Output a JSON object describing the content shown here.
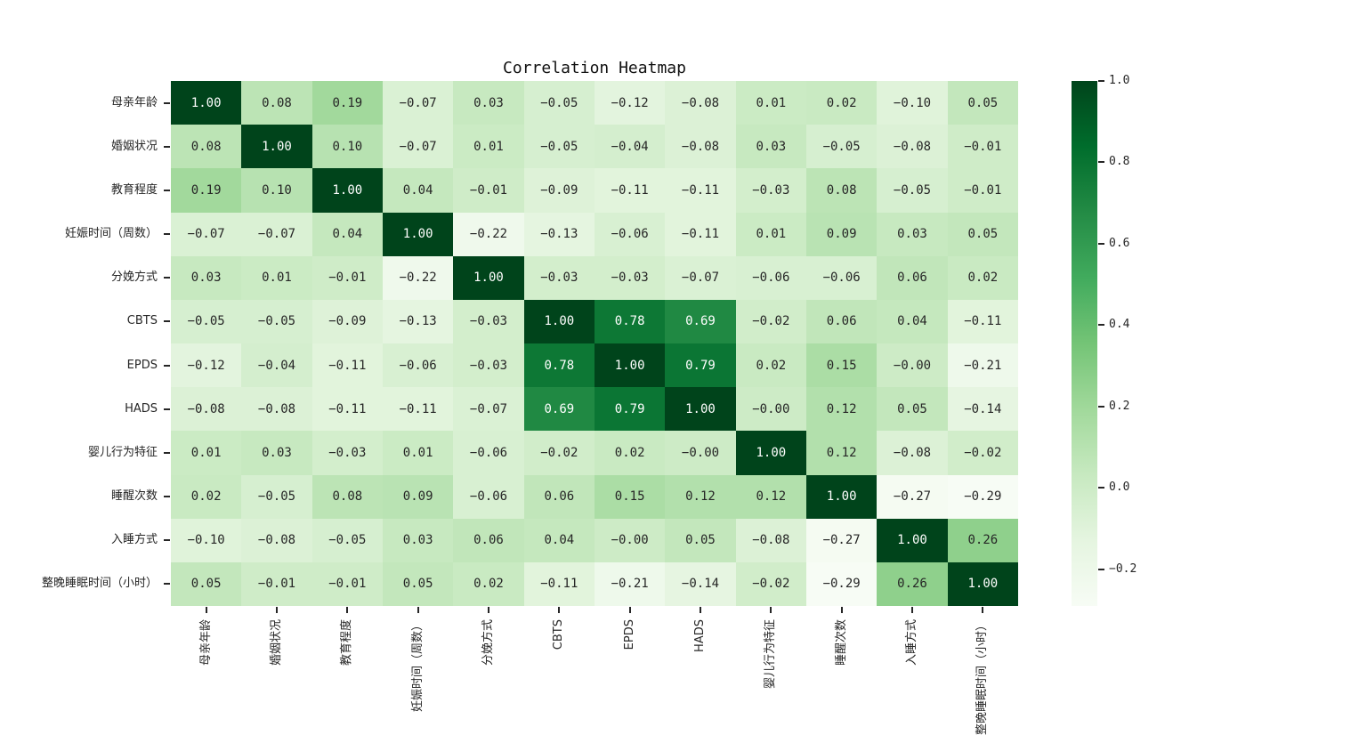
{
  "chart_data": {
    "type": "heatmap",
    "title": "Correlation Heatmap",
    "variables": [
      "母亲年龄",
      "婚姻状况",
      "教育程度",
      "妊娠时间（周数）",
      "分娩方式",
      "CBTS",
      "EPDS",
      "HADS",
      "婴儿行为特征",
      "睡醒次数",
      "入睡方式",
      "整晚睡眠时间（小时）"
    ],
    "matrix": [
      [
        "1.00",
        "0.08",
        "0.19",
        "-0.07",
        "0.03",
        "-0.05",
        "-0.12",
        "-0.08",
        "0.01",
        "0.02",
        "-0.10",
        "0.05"
      ],
      [
        "0.08",
        "1.00",
        "0.10",
        "-0.07",
        "0.01",
        "-0.05",
        "-0.04",
        "-0.08",
        "0.03",
        "-0.05",
        "-0.08",
        "-0.01"
      ],
      [
        "0.19",
        "0.10",
        "1.00",
        "0.04",
        "-0.01",
        "-0.09",
        "-0.11",
        "-0.11",
        "-0.03",
        "0.08",
        "-0.05",
        "-0.01"
      ],
      [
        "-0.07",
        "-0.07",
        "0.04",
        "1.00",
        "-0.22",
        "-0.13",
        "-0.06",
        "-0.11",
        "0.01",
        "0.09",
        "0.03",
        "0.05"
      ],
      [
        "0.03",
        "0.01",
        "-0.01",
        "-0.22",
        "1.00",
        "-0.03",
        "-0.03",
        "-0.07",
        "-0.06",
        "-0.06",
        "0.06",
        "0.02"
      ],
      [
        "-0.05",
        "-0.05",
        "-0.09",
        "-0.13",
        "-0.03",
        "1.00",
        "0.78",
        "0.69",
        "-0.02",
        "0.06",
        "0.04",
        "-0.11"
      ],
      [
        "-0.12",
        "-0.04",
        "-0.11",
        "-0.06",
        "-0.03",
        "0.78",
        "1.00",
        "0.79",
        "0.02",
        "0.15",
        "-0.00",
        "-0.21"
      ],
      [
        "-0.08",
        "-0.08",
        "-0.11",
        "-0.11",
        "-0.07",
        "0.69",
        "0.79",
        "1.00",
        "-0.00",
        "0.12",
        "0.05",
        "-0.14"
      ],
      [
        "0.01",
        "0.03",
        "-0.03",
        "0.01",
        "-0.06",
        "-0.02",
        "0.02",
        "-0.00",
        "1.00",
        "0.12",
        "-0.08",
        "-0.02"
      ],
      [
        "0.02",
        "-0.05",
        "0.08",
        "0.09",
        "-0.06",
        "0.06",
        "0.15",
        "0.12",
        "0.12",
        "1.00",
        "-0.27",
        "-0.29"
      ],
      [
        "-0.10",
        "-0.08",
        "-0.05",
        "0.03",
        "0.06",
        "0.04",
        "-0.00",
        "0.05",
        "-0.08",
        "-0.27",
        "1.00",
        "0.26"
      ],
      [
        "0.05",
        "-0.01",
        "-0.01",
        "0.05",
        "0.02",
        "-0.11",
        "-0.21",
        "-0.14",
        "-0.02",
        "-0.29",
        "0.26",
        "1.00"
      ]
    ],
    "vmin": -0.29,
    "vmax": 1.0,
    "colormap": {
      "name": "Greens",
      "anchors": [
        "#f7fcf5",
        "#e5f5e0",
        "#c7e9c0",
        "#a1d99b",
        "#74c476",
        "#41ab5d",
        "#238b45",
        "#006d2c",
        "#00441b"
      ]
    },
    "colorbar_ticks": [
      "1.0",
      "0.8",
      "0.6",
      "0.4",
      "0.2",
      "0.0",
      "-0.2"
    ],
    "colorbar_tick_values": [
      1.0,
      0.8,
      0.6,
      0.4,
      0.2,
      0.0,
      -0.2
    ],
    "annotation_colors": {
      "light_text": "#ffffff",
      "dark_text": "#262626"
    },
    "legend_position": "right",
    "grid": false
  }
}
